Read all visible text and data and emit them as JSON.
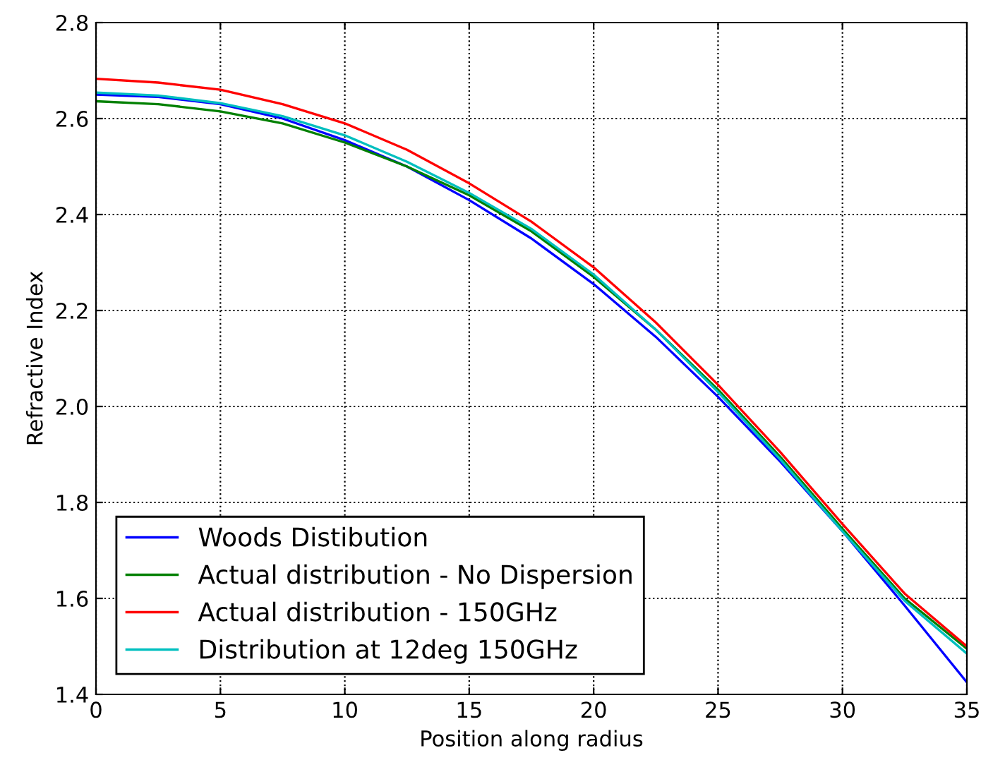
{
  "chart_data": {
    "type": "line",
    "xlabel": "Position along radius",
    "ylabel": "Refractive Index",
    "xlim": [
      0,
      35
    ],
    "ylim": [
      1.4,
      2.8
    ],
    "xticks": [
      0,
      5,
      10,
      15,
      20,
      25,
      30,
      35
    ],
    "yticks": [
      1.4,
      1.6,
      1.8,
      {
        "value": 2.0,
        "label": "2.0"
      },
      2.2,
      2.4,
      2.6,
      2.8
    ],
    "grid": true,
    "legend": "bottom left",
    "x": [
      0,
      2.5,
      5,
      7.5,
      10,
      12.5,
      15,
      17.5,
      20,
      22.5,
      25,
      27.5,
      30,
      32.5,
      35
    ],
    "series": [
      {
        "name": "Woods Distibution",
        "color": "#0000ff",
        "values": [
          2.65,
          2.645,
          2.63,
          2.6,
          2.555,
          2.5,
          2.43,
          2.35,
          2.255,
          2.145,
          2.02,
          1.885,
          1.74,
          1.585,
          1.425
        ]
      },
      {
        "name": "Actual distribution - No Dispersion",
        "color": "#008000",
        "values": [
          2.636,
          2.63,
          2.615,
          2.59,
          2.55,
          2.5,
          2.44,
          2.365,
          2.27,
          2.16,
          2.035,
          1.895,
          1.745,
          1.6,
          1.495
        ]
      },
      {
        "name": "Actual distribution - 150GHz",
        "color": "#ff0000",
        "values": [
          2.683,
          2.675,
          2.66,
          2.63,
          2.59,
          2.535,
          2.465,
          2.385,
          2.29,
          2.175,
          2.045,
          1.905,
          1.755,
          1.61,
          1.5
        ]
      },
      {
        "name": "Distribution at 12deg 150GHz",
        "color": "#00bfbf",
        "values": [
          2.654,
          2.648,
          2.632,
          2.605,
          2.565,
          2.51,
          2.445,
          2.37,
          2.275,
          2.16,
          2.03,
          1.89,
          1.74,
          1.595,
          1.485
        ]
      }
    ]
  }
}
